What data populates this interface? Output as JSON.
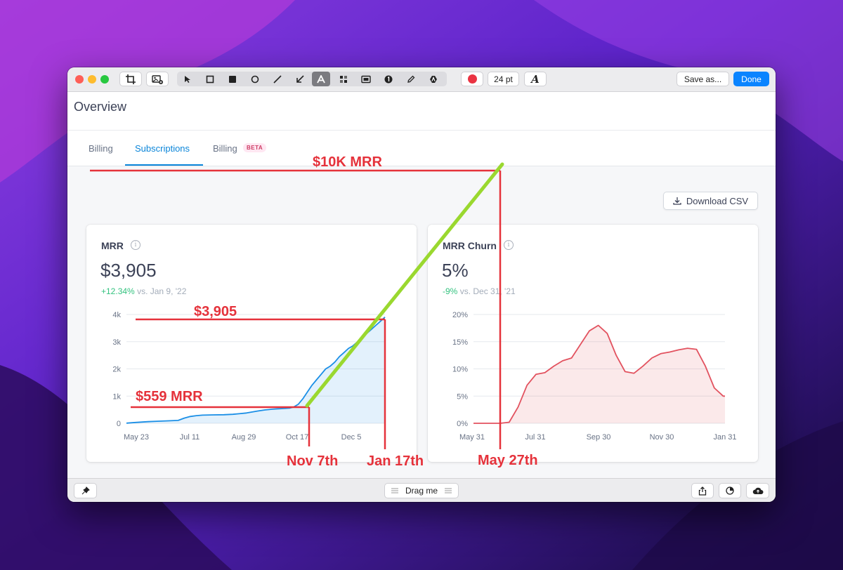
{
  "window": {
    "toolbar": {
      "font_size": "24 pt",
      "font_icon_label": "A",
      "save_label": "Save as...",
      "done_label": "Done",
      "color_swatch": "#ea3342"
    },
    "page_title": "Overview",
    "tabs": [
      {
        "label": "Billing",
        "active": false
      },
      {
        "label": "Subscriptions",
        "active": true
      },
      {
        "label": "Billing",
        "badge": "BETA",
        "active": false
      }
    ],
    "download_label": "Download CSV",
    "bottombar": {
      "drag_label": "Drag me"
    }
  },
  "cards": {
    "mrr": {
      "title": "MRR",
      "value": "$3,905",
      "delta": "+12.34%",
      "delta_context": "vs. Jan 9, '22"
    },
    "churn": {
      "title": "MRR Churn",
      "value": "5%",
      "delta": "-9%",
      "delta_context": "vs. Dec 31, '21"
    }
  },
  "annotations": {
    "ten_k": "$10K MRR",
    "current": "$3,905",
    "start": "$559 MRR",
    "nov": "Nov 7th",
    "jan": "Jan 17th",
    "may": "May 27th"
  },
  "chart_data": [
    {
      "type": "area",
      "title": "MRR",
      "x_labels": [
        "May 23",
        "Jul 11",
        "Aug 29",
        "Oct 17",
        "Dec 5"
      ],
      "y_ticks": [
        "0",
        "1k",
        "2k",
        "3k",
        "4k"
      ],
      "ylim": [
        0,
        4000
      ],
      "points": [
        [
          0,
          5
        ],
        [
          12,
          30
        ],
        [
          28,
          60
        ],
        [
          40,
          75
        ],
        [
          55,
          90
        ],
        [
          68,
          105
        ],
        [
          76,
          190
        ],
        [
          84,
          250
        ],
        [
          92,
          280
        ],
        [
          100,
          300
        ],
        [
          115,
          310
        ],
        [
          128,
          315
        ],
        [
          140,
          330
        ],
        [
          148,
          350
        ],
        [
          158,
          380
        ],
        [
          166,
          420
        ],
        [
          172,
          450
        ],
        [
          182,
          490
        ],
        [
          192,
          520
        ],
        [
          200,
          535
        ],
        [
          208,
          545
        ],
        [
          215,
          559
        ],
        [
          220,
          600
        ],
        [
          226,
          700
        ],
        [
          232,
          900
        ],
        [
          238,
          1150
        ],
        [
          244,
          1400
        ],
        [
          250,
          1600
        ],
        [
          256,
          1800
        ],
        [
          262,
          2000
        ],
        [
          268,
          2100
        ],
        [
          274,
          2250
        ],
        [
          280,
          2450
        ],
        [
          286,
          2600
        ],
        [
          292,
          2750
        ],
        [
          298,
          2850
        ],
        [
          304,
          3000
        ],
        [
          310,
          3150
        ],
        [
          316,
          3300
        ],
        [
          322,
          3450
        ],
        [
          328,
          3600
        ],
        [
          334,
          3750
        ],
        [
          340,
          3905
        ]
      ],
      "x_domain": [
        0,
        340
      ]
    },
    {
      "type": "area",
      "title": "MRR Churn",
      "x_labels": [
        "May 31",
        "Jul 31",
        "Sep 30",
        "Nov 30",
        "Jan 31"
      ],
      "y_ticks": [
        "0%",
        "5%",
        "10%",
        "15%",
        "20%"
      ],
      "ylim": [
        0,
        20
      ],
      "points": [
        [
          0,
          0
        ],
        [
          30,
          0
        ],
        [
          40,
          0.2
        ],
        [
          50,
          3
        ],
        [
          60,
          7
        ],
        [
          70,
          9
        ],
        [
          80,
          9.3
        ],
        [
          90,
          10.5
        ],
        [
          100,
          11.5
        ],
        [
          110,
          12
        ],
        [
          120,
          14.5
        ],
        [
          130,
          17
        ],
        [
          140,
          18
        ],
        [
          150,
          16.5
        ],
        [
          160,
          12.5
        ],
        [
          170,
          9.5
        ],
        [
          180,
          9.2
        ],
        [
          190,
          10.5
        ],
        [
          200,
          12
        ],
        [
          210,
          12.8
        ],
        [
          220,
          13.1
        ],
        [
          230,
          13.5
        ],
        [
          240,
          13.8
        ],
        [
          250,
          13.6
        ],
        [
          260,
          10.5
        ],
        [
          270,
          6.5
        ],
        [
          280,
          5
        ],
        [
          282,
          5
        ]
      ],
      "x_domain": [
        0,
        282
      ]
    }
  ],
  "colors": {
    "accent": "#0a85d9",
    "annotation_red": "#e5323b",
    "annotation_green": "#9ad82f",
    "mrr_line": "#1b8fe6",
    "churn_line": "#e2525f"
  }
}
